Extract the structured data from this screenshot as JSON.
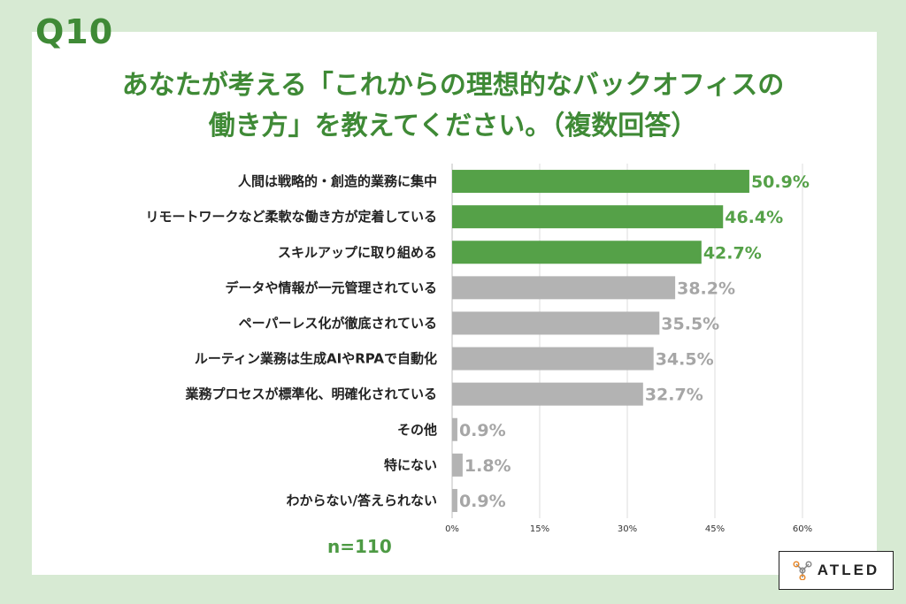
{
  "question_label": "Q10",
  "title_line1": "あなたが考える「これからの理想的なバックオフィスの",
  "title_line2": "働き方」を教えてください。（複数回答）",
  "sample_size": "n=110",
  "logo_text": "ATLED",
  "colors": {
    "highlight": "#55a148",
    "highlight_text": "#55a148",
    "other": "#b3b3b3",
    "other_text": "#a6a6a6"
  },
  "chart_data": {
    "type": "bar",
    "orientation": "horizontal",
    "categories": [
      "人間は戦略的・創造的業務に集中",
      "リモートワークなど柔軟な働き方が定着している",
      "スキルアップに取り組める",
      "データや情報が一元管理されている",
      "ペーパーレス化が徹底されている",
      "ルーティン業務は生成AIやRPAで自動化",
      "業務プロセスが標準化、明確化されている",
      "その他",
      "特にない",
      "わからない/答えられない"
    ],
    "values": [
      50.9,
      46.4,
      42.7,
      38.2,
      35.5,
      34.5,
      32.7,
      0.9,
      1.8,
      0.9
    ],
    "value_labels": [
      "50.9%",
      "46.4%",
      "42.7%",
      "38.2%",
      "35.5%",
      "34.5%",
      "32.7%",
      "0.9%",
      "1.8%",
      "0.9%"
    ],
    "highlighted": [
      true,
      true,
      true,
      false,
      false,
      false,
      false,
      false,
      false,
      false
    ],
    "xlim": [
      0,
      60
    ],
    "xticks": [
      0,
      15,
      30,
      45,
      60
    ],
    "xtick_labels": [
      "0%",
      "15%",
      "30%",
      "45%",
      "60%"
    ],
    "grid": true
  }
}
